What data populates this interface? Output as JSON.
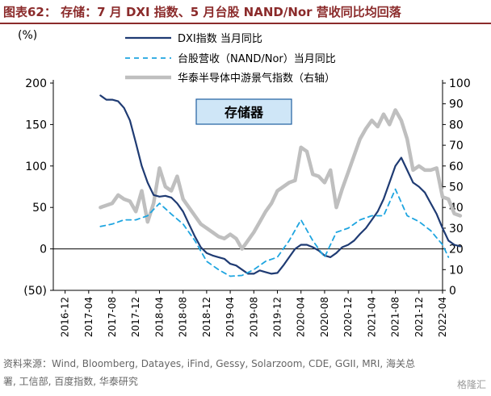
{
  "header": {
    "title": "图表62：  存储：7 月 DXI 指数、5 月台股 NAND/Nor 营收同比均回落"
  },
  "footer": {
    "source": "资料来源：Wind, Bloomberg, Datayes, iFind, Gessy, Solarzoom, CDE, GGII, MRI, 海关总署, 工信部, 百度指数, 华泰研究",
    "watermark": "格隆汇"
  },
  "colors": {
    "title": "#8b2b2b",
    "dxi": "#1f3b73",
    "nand": "#1ea5e0",
    "baidu": "#bfbfbf",
    "box_fill": "#cfe6f7",
    "box_border": "#1f5fa0"
  },
  "chart_data": {
    "type": "line",
    "title": "",
    "left_unit": "(%)",
    "annotation": "存储器",
    "ylim_left": [
      -50,
      200
    ],
    "ylim_right": [
      0,
      100
    ],
    "left_ticks": [
      "(50)",
      "0",
      "50",
      "100",
      "150",
      "200"
    ],
    "right_ticks": [
      "0",
      "10",
      "20",
      "30",
      "40",
      "50",
      "60",
      "70",
      "80",
      "90",
      "100"
    ],
    "x_ticks": [
      "2016-12",
      "2017-04",
      "2017-08",
      "2017-12",
      "2018-04",
      "2018-08",
      "2018-12",
      "2019-04",
      "2019-08",
      "2019-12",
      "2020-04",
      "2020-08",
      "2020-12",
      "2021-04",
      "2021-08",
      "2021-12",
      "2022-04"
    ],
    "series": [
      {
        "name": "DXI指数 当月同比",
        "axis": "left",
        "x": [
          "2017-06",
          "2017-07",
          "2017-08",
          "2017-09",
          "2017-10",
          "2017-11",
          "2017-12",
          "2018-01",
          "2018-02",
          "2018-03",
          "2018-04",
          "2018-05",
          "2018-06",
          "2018-07",
          "2018-08",
          "2018-09",
          "2018-10",
          "2018-11",
          "2018-12",
          "2019-01",
          "2019-02",
          "2019-03",
          "2019-04",
          "2019-05",
          "2019-06",
          "2019-07",
          "2019-08",
          "2019-09",
          "2019-10",
          "2019-11",
          "2019-12",
          "2020-01",
          "2020-02",
          "2020-03",
          "2020-04",
          "2020-05",
          "2020-06",
          "2020-07",
          "2020-08",
          "2020-09",
          "2020-10",
          "2020-11",
          "2020-12",
          "2021-01",
          "2021-02",
          "2021-03",
          "2021-04",
          "2021-05",
          "2021-06",
          "2021-07",
          "2021-08",
          "2021-09",
          "2021-10",
          "2021-11",
          "2021-12",
          "2022-01",
          "2022-02",
          "2022-03",
          "2022-04",
          "2022-05",
          "2022-06",
          "2022-07"
        ],
        "values": [
          185,
          180,
          180,
          178,
          170,
          155,
          128,
          100,
          80,
          65,
          63,
          64,
          62,
          55,
          45,
          30,
          15,
          2,
          -5,
          -8,
          -10,
          -12,
          -18,
          -20,
          -25,
          -30,
          -30,
          -26,
          -28,
          -30,
          -29,
          -20,
          -10,
          0,
          5,
          5,
          2,
          -2,
          -8,
          -10,
          -5,
          2,
          5,
          10,
          18,
          25,
          35,
          45,
          60,
          80,
          100,
          110,
          95,
          80,
          75,
          68,
          55,
          42,
          25,
          10,
          5,
          3
        ]
      },
      {
        "name": "台股营收（NAND/Nor）当月同比",
        "axis": "left",
        "x": [
          "2017-06",
          "2017-08",
          "2017-10",
          "2017-12",
          "2018-02",
          "2018-04",
          "2018-06",
          "2018-08",
          "2018-10",
          "2018-12",
          "2019-02",
          "2019-04",
          "2019-06",
          "2019-08",
          "2019-10",
          "2019-12",
          "2020-02",
          "2020-04",
          "2020-06",
          "2020-08",
          "2020-10",
          "2020-12",
          "2021-02",
          "2021-04",
          "2021-06",
          "2021-08",
          "2021-10",
          "2021-12",
          "2022-02",
          "2022-04",
          "2022-05"
        ],
        "values": [
          27,
          30,
          35,
          35,
          40,
          55,
          42,
          30,
          10,
          -15,
          -25,
          -33,
          -32,
          -25,
          -15,
          -10,
          10,
          35,
          10,
          -10,
          20,
          25,
          35,
          40,
          40,
          72,
          40,
          33,
          22,
          5,
          -10
        ]
      },
      {
        "name": "华泰半导体中游景气指数（右轴）",
        "axis": "right",
        "x": [
          "2017-06",
          "2017-07",
          "2017-08",
          "2017-09",
          "2017-10",
          "2017-11",
          "2017-12",
          "2018-01",
          "2018-02",
          "2018-03",
          "2018-04",
          "2018-05",
          "2018-06",
          "2018-07",
          "2018-08",
          "2018-09",
          "2018-10",
          "2018-11",
          "2018-12",
          "2019-01",
          "2019-02",
          "2019-03",
          "2019-04",
          "2019-05",
          "2019-06",
          "2019-07",
          "2019-08",
          "2019-09",
          "2019-10",
          "2019-11",
          "2019-12",
          "2020-01",
          "2020-02",
          "2020-03",
          "2020-04",
          "2020-05",
          "2020-06",
          "2020-07",
          "2020-08",
          "2020-09",
          "2020-10",
          "2020-11",
          "2020-12",
          "2021-01",
          "2021-02",
          "2021-03",
          "2021-04",
          "2021-05",
          "2021-06",
          "2021-07",
          "2021-08",
          "2021-09",
          "2021-10",
          "2021-11",
          "2021-12",
          "2022-01",
          "2022-02",
          "2022-03",
          "2022-04",
          "2022-05",
          "2022-06",
          "2022-07"
        ],
        "values": [
          40,
          41,
          42,
          46,
          44,
          43,
          38,
          48,
          33,
          42,
          59,
          50,
          48,
          55,
          44,
          40,
          36,
          32,
          30,
          28,
          26,
          25,
          27,
          25,
          20,
          24,
          28,
          33,
          38,
          42,
          48,
          50,
          52,
          53,
          69,
          67,
          56,
          55,
          52,
          58,
          40,
          49,
          57,
          65,
          73,
          78,
          82,
          79,
          85,
          80,
          87,
          82,
          73,
          58,
          60,
          58,
          58,
          59,
          45,
          44,
          37,
          36
        ]
      }
    ]
  }
}
